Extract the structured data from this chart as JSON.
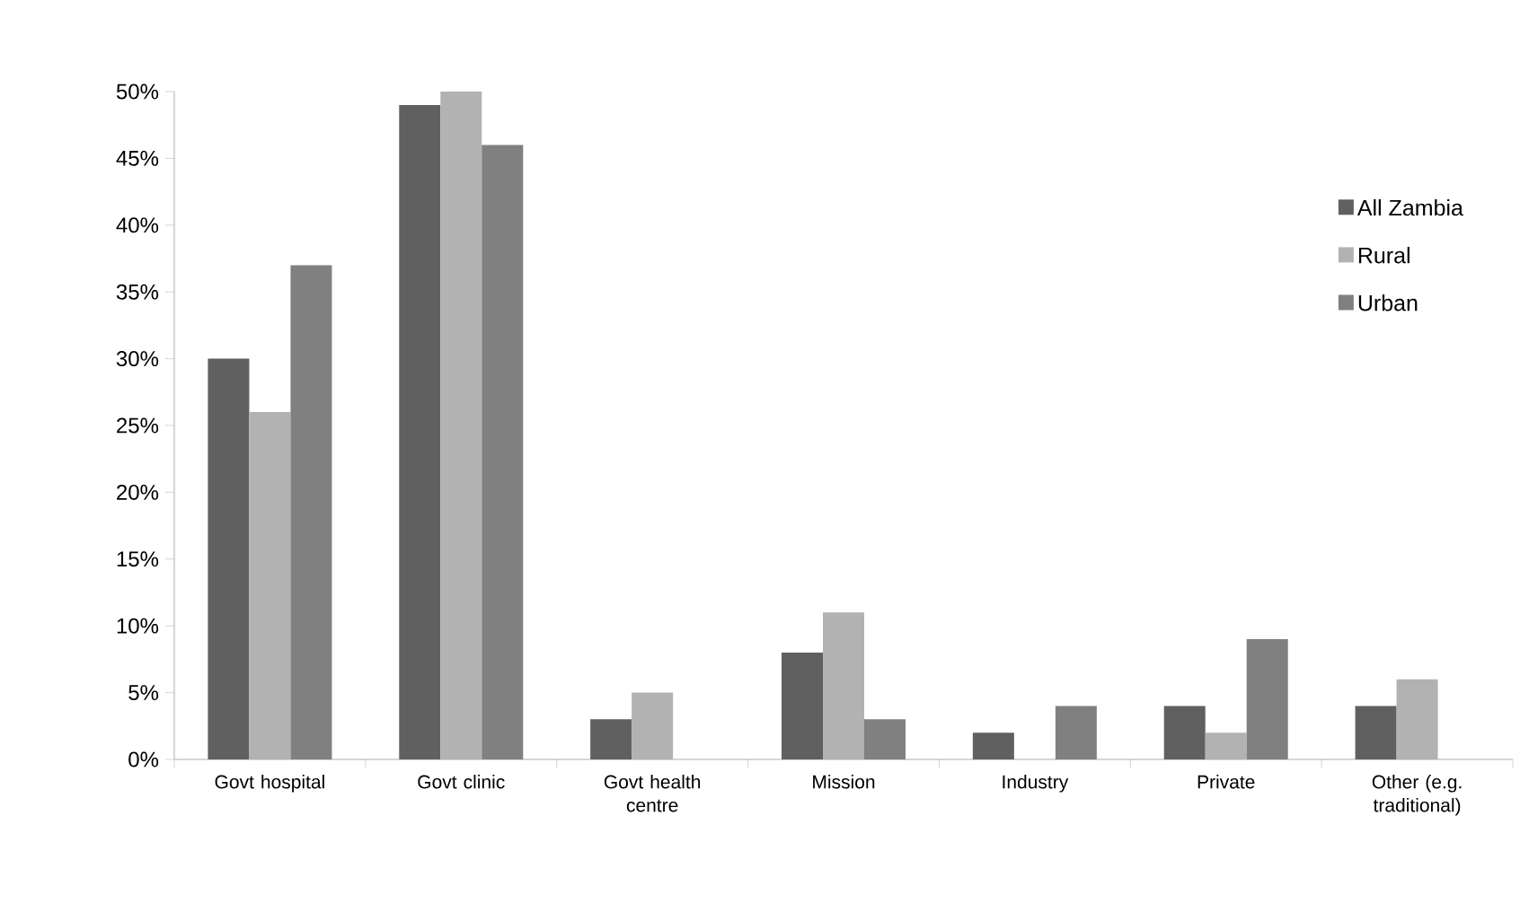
{
  "chart_data": {
    "type": "bar",
    "categories": [
      "Govt hospital",
      "Govt clinic",
      "Govt health centre",
      "Mission",
      "Industry",
      "Private",
      "Other (e.g. traditional)"
    ],
    "series": [
      {
        "name": "All Zambia",
        "color": "#606060",
        "values": [
          30,
          49,
          3,
          8,
          2,
          4,
          4
        ]
      },
      {
        "name": "Rural",
        "color": "#b2b2b2",
        "values": [
          26,
          50,
          5,
          11,
          null,
          2,
          6
        ]
      },
      {
        "name": "Urban",
        "color": "#808080",
        "values": [
          37,
          46,
          null,
          3,
          4,
          9,
          null
        ]
      }
    ],
    "ylim": [
      0,
      50
    ],
    "yticks": [
      {
        "value": 0,
        "label": "0%"
      },
      {
        "value": 5,
        "label": "5%"
      },
      {
        "value": 10,
        "label": "10%"
      },
      {
        "value": 15,
        "label": "15%"
      },
      {
        "value": 20,
        "label": "20%"
      },
      {
        "value": 25,
        "label": "25%"
      },
      {
        "value": 30,
        "label": "30%"
      },
      {
        "value": 35,
        "label": "35%"
      },
      {
        "value": 40,
        "label": "40%"
      },
      {
        "value": 45,
        "label": "45%"
      },
      {
        "value": 50,
        "label": "50%"
      }
    ],
    "grid": false,
    "legend": "top right"
  }
}
